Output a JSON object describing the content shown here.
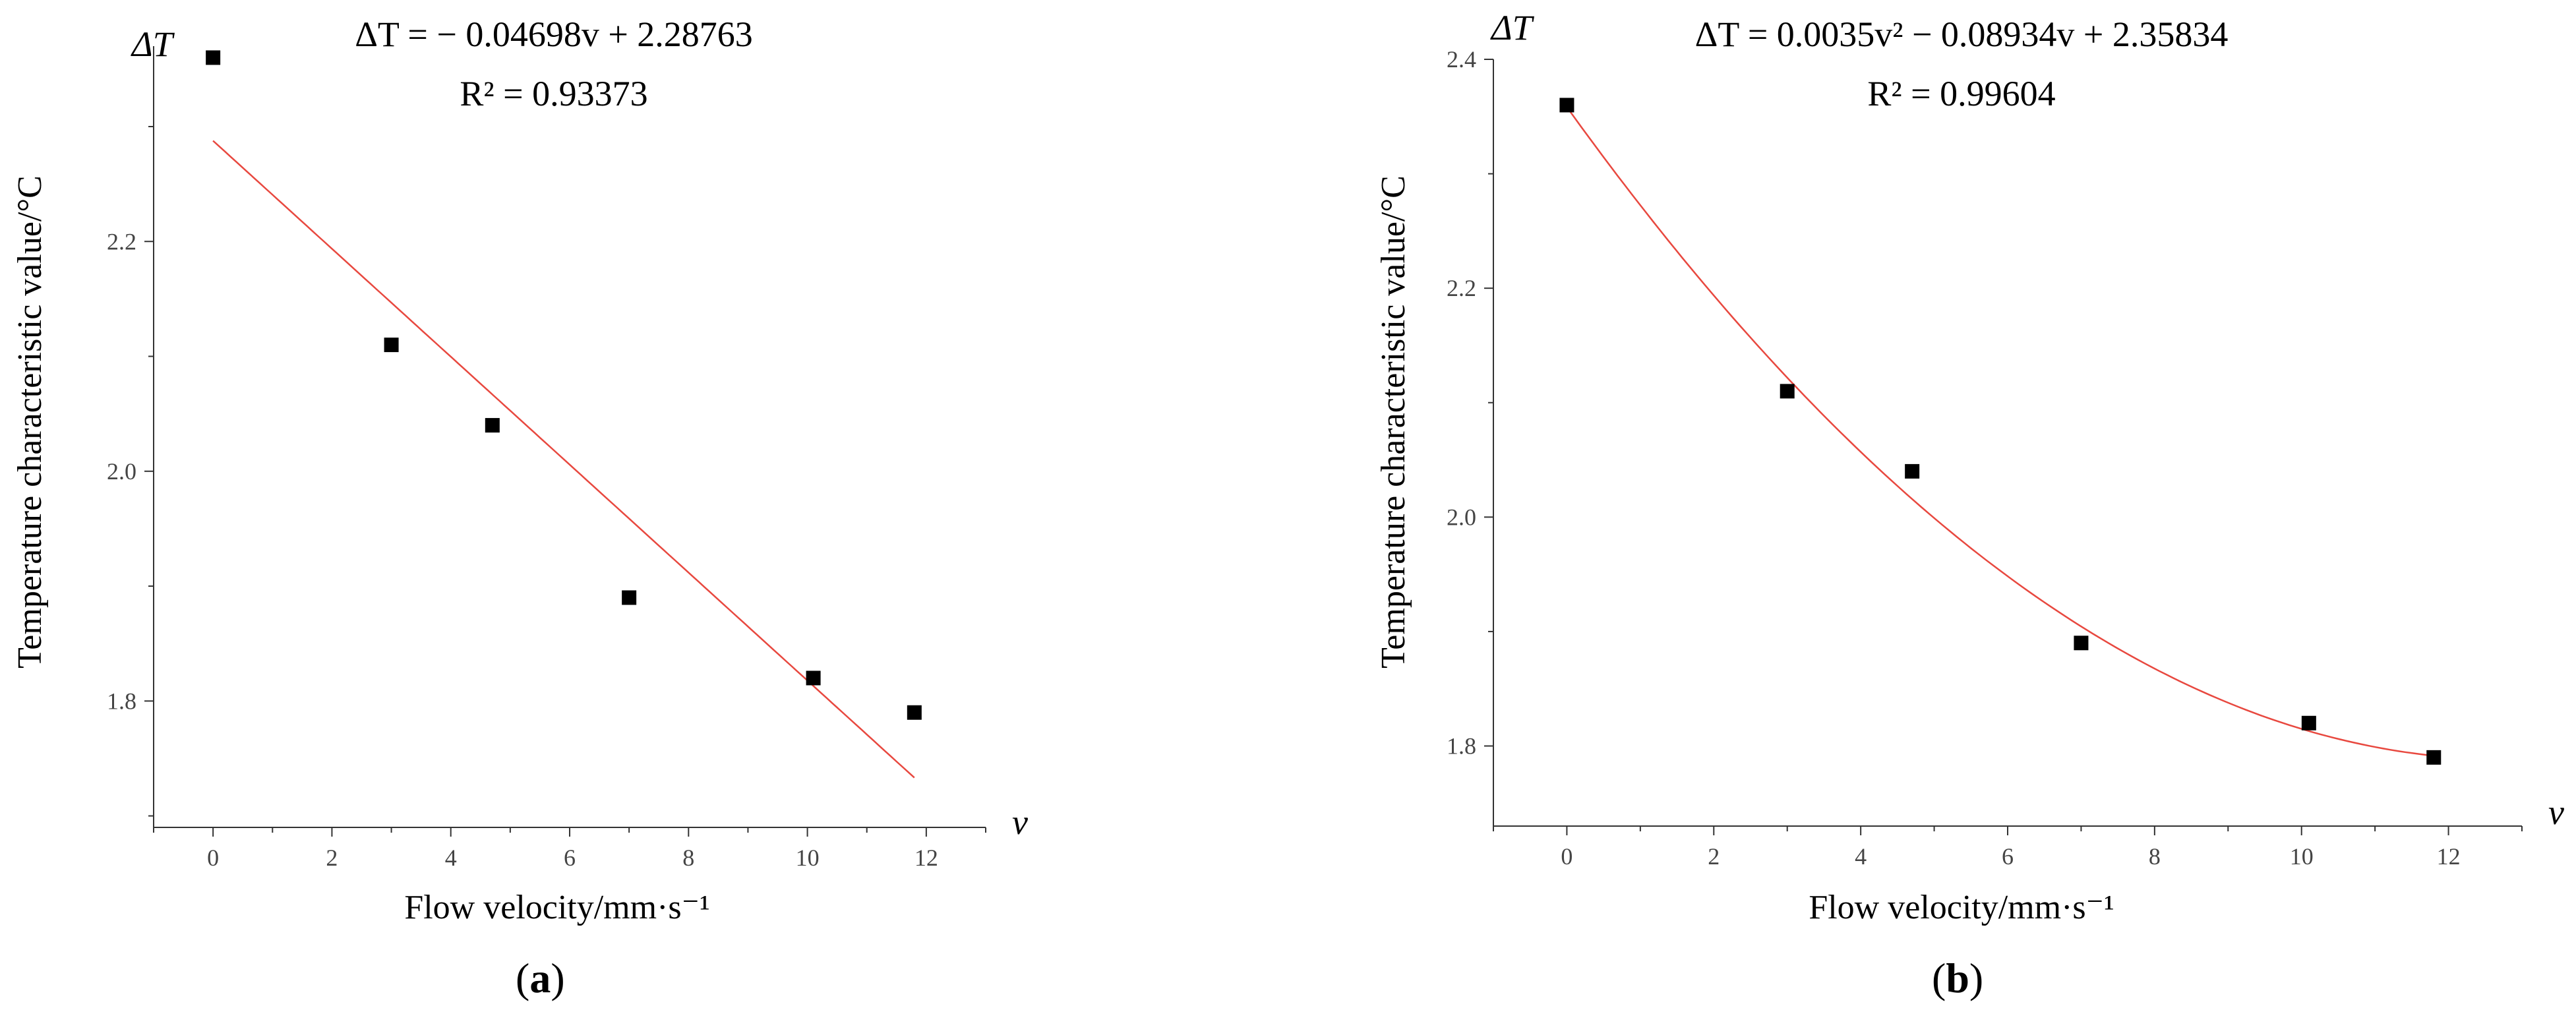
{
  "panels": [
    {
      "label": "a",
      "y_symbol": "ΔT",
      "x_symbol": "v",
      "equation": "ΔT = − 0.04698v + 2.28763",
      "r2_text": "R² = 0.93373",
      "xlabel": "Flow velocity/mm·s⁻¹",
      "ylabel": "Temperature characteristic value/°C"
    },
    {
      "label": "b",
      "y_symbol": "ΔT",
      "x_symbol": "v",
      "equation": "ΔT = 0.0035v² − 0.08934v + 2.35834",
      "r2_text": "R² = 0.99604",
      "xlabel": "Flow velocity/mm·s⁻¹",
      "ylabel": "Temperature characteristic value/°C"
    }
  ],
  "chart_data": [
    {
      "type": "scatter",
      "xlabel": "Flow velocity/mm·s⁻¹",
      "ylabel": "Temperature characteristic value/°C",
      "xlim": [
        -1,
        13
      ],
      "ylim": [
        1.69,
        2.37
      ],
      "x_ticks": [
        0,
        2,
        4,
        6,
        8,
        10,
        12
      ],
      "y_ticks": [
        1.8,
        2.0,
        2.2
      ],
      "x": [
        0,
        3,
        4.7,
        7,
        10.1,
        11.8
      ],
      "y": [
        2.36,
        2.11,
        2.04,
        1.89,
        1.82,
        1.79
      ],
      "fit": {
        "type": "linear",
        "coefficients": [
          2.28763,
          -0.04698
        ],
        "x_range": [
          0,
          11.8
        ]
      },
      "grid": false,
      "marker_color": "#000000",
      "fit_color": "#e8483f"
    },
    {
      "type": "scatter",
      "xlabel": "Flow velocity/mm·s⁻¹",
      "ylabel": "Temperature characteristic value/°C",
      "xlim": [
        -1,
        13
      ],
      "ylim": [
        1.73,
        2.4
      ],
      "x_ticks": [
        0,
        2,
        4,
        6,
        8,
        10,
        12
      ],
      "y_ticks": [
        1.8,
        2.0,
        2.2,
        2.4
      ],
      "x": [
        0,
        3,
        4.7,
        7,
        10.1,
        11.8
      ],
      "y": [
        2.36,
        2.11,
        2.04,
        1.89,
        1.82,
        1.79
      ],
      "fit": {
        "type": "quadratic",
        "coefficients": [
          2.35834,
          -0.08934,
          0.0035
        ],
        "x_range": [
          0,
          11.8
        ]
      },
      "grid": false,
      "marker_color": "#000000",
      "fit_color": "#e8483f"
    }
  ]
}
